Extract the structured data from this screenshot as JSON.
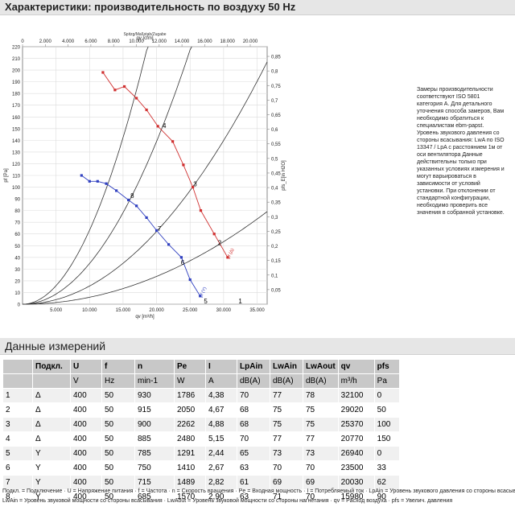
{
  "header": {
    "title": "Характеристики: производительность по воздуху 50 Hz"
  },
  "chart_data": {
    "type": "line",
    "top_tiny_label": "Spitzg/Maßstab/Zugabe",
    "x_top_label": "qv [cfm]",
    "x_bottom_label": "qv [m³/h]",
    "y_left_label": "pf [Pa]",
    "y_right_label": "pfs_E[in H2O]",
    "x_ticks_m3h": [
      "5.000",
      "10.000",
      "15.000",
      "20.000",
      "25.000",
      "30.000",
      "35.000"
    ],
    "x_ticks_cfm": [
      "0",
      "2.000",
      "4.000",
      "6.000",
      "8.000",
      "10.000",
      "12.000",
      "14.000",
      "16.000",
      "18.000",
      "20.000"
    ],
    "y_ticks_pa": [
      "0",
      "10",
      "20",
      "30",
      "40",
      "50",
      "60",
      "70",
      "80",
      "90",
      "100",
      "110",
      "120",
      "130",
      "140",
      "150",
      "160",
      "170",
      "180",
      "190",
      "200",
      "210",
      "220"
    ],
    "y_ticks_inh2o": [
      "0,05",
      "0,1",
      "0,15",
      "0,2",
      "0,25",
      "0,3",
      "0,35",
      "0,4",
      "0,45",
      "0,5",
      "0,55",
      "0,6",
      "0,65",
      "0,7",
      "0,75",
      "0,8",
      "0,85"
    ],
    "xlim_m3h": [
      0,
      36500
    ],
    "ylim_pa": [
      0,
      220
    ],
    "series": [
      {
        "name": "Δ",
        "color": "#d03030",
        "end_label": "pf (Δ)",
        "points": [
          [
            12000,
            198
          ],
          [
            13800,
            183
          ],
          [
            15200,
            186
          ],
          [
            17000,
            176
          ],
          [
            18500,
            166
          ],
          [
            20200,
            152
          ],
          [
            22400,
            139
          ],
          [
            24000,
            119
          ],
          [
            25400,
            100
          ],
          [
            26600,
            80
          ],
          [
            28600,
            60
          ],
          [
            30600,
            40
          ]
        ]
      },
      {
        "name": "Y",
        "color": "#3040c0",
        "end_label": "pf (Y)",
        "points": [
          [
            8800,
            110
          ],
          [
            10000,
            105
          ],
          [
            11200,
            105
          ],
          [
            12500,
            103
          ],
          [
            14000,
            97
          ],
          [
            15800,
            89
          ],
          [
            17000,
            84
          ],
          [
            18500,
            74
          ],
          [
            20000,
            63
          ],
          [
            21800,
            51
          ],
          [
            23700,
            40
          ],
          [
            25000,
            21
          ],
          [
            26500,
            7
          ]
        ]
      }
    ],
    "curve_labels": [
      "1",
      "2",
      "3",
      "4",
      "5",
      "6",
      "7",
      "8"
    ],
    "system_curves": 4
  },
  "note": {
    "text": "Замеры производительности соответствуют ISO 5801 категория А. Для детального уточнения способа замеров, Вам необходимо обратиться к специалистам ebm-papst. Уровень звукового давления со стороны всасывания: LwA по ISO 13347 / LpA с расстоянием 1м от оси вентилятора Данные действительны только при указанных условиях измерения и могут варьироваться в зависимости от условий установки. При отклонении от стандартной конфигурации, необходимо проверить все значения в собранной установке."
  },
  "measurements": {
    "title": "Данные измерений",
    "columns": [
      "",
      "Подкл.",
      "U",
      "f",
      "n",
      "Pe",
      "I",
      "LpAin",
      "LwAin",
      "LwAout",
      "qv",
      "pfs"
    ],
    "units": [
      "",
      "",
      "V",
      "Hz",
      "min-1",
      "W",
      "A",
      "dB(A)",
      "dB(A)",
      "dB(A)",
      "m³/h",
      "Pa"
    ],
    "rows": [
      [
        "1",
        "Δ",
        "400",
        "50",
        "930",
        "1786",
        "4,38",
        "70",
        "77",
        "78",
        "32100",
        "0"
      ],
      [
        "2",
        "Δ",
        "400",
        "50",
        "915",
        "2050",
        "4,67",
        "68",
        "75",
        "75",
        "29020",
        "50"
      ],
      [
        "3",
        "Δ",
        "400",
        "50",
        "900",
        "2262",
        "4,88",
        "68",
        "75",
        "75",
        "25370",
        "100"
      ],
      [
        "4",
        "Δ",
        "400",
        "50",
        "885",
        "2480",
        "5,15",
        "70",
        "77",
        "77",
        "20770",
        "150"
      ],
      [
        "5",
        "Y",
        "400",
        "50",
        "785",
        "1291",
        "2,44",
        "65",
        "73",
        "73",
        "26940",
        "0"
      ],
      [
        "6",
        "Y",
        "400",
        "50",
        "750",
        "1410",
        "2,67",
        "63",
        "70",
        "70",
        "23500",
        "33"
      ],
      [
        "7",
        "Y",
        "400",
        "50",
        "715",
        "1489",
        "2,82",
        "61",
        "69",
        "69",
        "20030",
        "62"
      ],
      [
        "8",
        "Y",
        "400",
        "50",
        "685",
        "1570",
        "2,90",
        "63",
        "71",
        "70",
        "15980",
        "90"
      ]
    ]
  },
  "legend": {
    "line1": "Подкл. = Подключение · U = Напряжение питания · f = Частота · n = Скорость вращения · Pe = Входная мощность · I = Потребляемый ток · LpAin = Уровень звукового давления со стороны всасывания ·",
    "line2": "LwAin = Уровень звуковой мощности со стороны всасывания · LwAout = Уровень звуковой мощности со стороны нагнетания · qv = Расход воздуха · pfs = Увелич. давления"
  }
}
